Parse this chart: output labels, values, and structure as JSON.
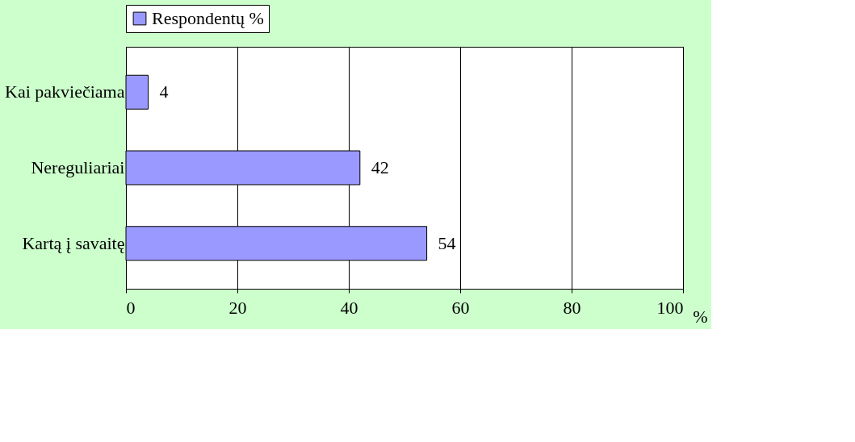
{
  "chart_data": {
    "type": "bar",
    "orientation": "horizontal",
    "xlabel": "%",
    "categories": [
      "Kai pakviečiama",
      "Nereguliariai",
      "Kartą į savaitę"
    ],
    "series": [
      {
        "name": "Respondentų %",
        "color": "#9999ff",
        "values": [
          4,
          42,
          54
        ]
      }
    ],
    "xlim": [
      0,
      100
    ],
    "xticks": [
      0,
      20,
      40,
      60,
      80,
      100
    ],
    "grid": "x",
    "legend": "top",
    "data_labels": true
  }
}
